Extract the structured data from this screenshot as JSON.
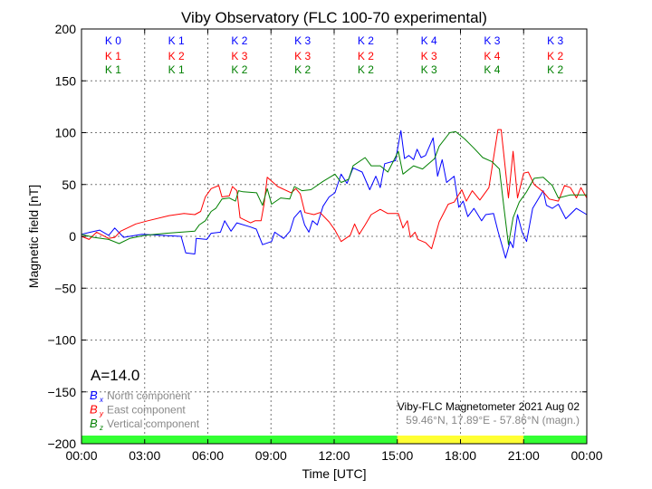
{
  "chart_data": {
    "type": "line",
    "title": "Viby Observatory (FLC 100-70 experimental)",
    "xlabel": "Time [UTC]",
    "ylabel": "Magnetic field [nT]",
    "xlim": [
      0,
      24
    ],
    "ylim": [
      -200,
      200
    ],
    "grid": true,
    "x_ticks": [
      0,
      3,
      6,
      9,
      12,
      15,
      18,
      21,
      24
    ],
    "x_tick_labels": [
      "00:00",
      "03:00",
      "06:00",
      "09:00",
      "12:00",
      "15:00",
      "18:00",
      "21:00",
      "00:00"
    ],
    "y_ticks": [
      200,
      150,
      100,
      50,
      0,
      -50,
      -100,
      -150,
      -200
    ],
    "y_tick_labels": [
      "200",
      "150",
      "100",
      "50",
      "0",
      "−50",
      "−100",
      "−150",
      "−200"
    ],
    "k_indices": {
      "Bx": [
        "K 0",
        "K 1",
        "K 2",
        "K 3",
        "K 2",
        "K 4",
        "K 3",
        "K 3"
      ],
      "By": [
        "K 1",
        "K 2",
        "K 3",
        "K 3",
        "K 2",
        "K 3",
        "K 4",
        "K 2"
      ],
      "Bz": [
        "K 1",
        "K 1",
        "K 2",
        "K 2",
        "K 2",
        "K 3",
        "K 4",
        "K 2"
      ]
    },
    "activity_bar": [
      {
        "from": 0,
        "to": 15,
        "color": "#33ff33"
      },
      {
        "from": 15,
        "to": 21,
        "color": "#ffff33"
      },
      {
        "from": 21,
        "to": 24,
        "color": "#33ff33"
      }
    ],
    "a_index": "A=14.0",
    "legend_placement": "bottom-left",
    "station_label": "Viby-FLC Magnetometer 2021 Aug 02",
    "coords_label": "59.46°N, 17.89°E - 57.86°N (magn.)",
    "series": [
      {
        "name": "Bx",
        "symbol": "B",
        "sub": "x",
        "label": "North component",
        "color": "#0000ff",
        "points": [
          [
            0,
            2
          ],
          [
            0.43,
            4
          ],
          [
            0.86,
            6
          ],
          [
            1.29,
            1
          ],
          [
            1.58,
            8
          ],
          [
            2.0,
            -1
          ],
          [
            2.87,
            2
          ],
          [
            4.73,
            0
          ],
          [
            4.95,
            -16
          ],
          [
            5.38,
            -17
          ],
          [
            5.45,
            -2
          ],
          [
            5.95,
            -3
          ],
          [
            6.16,
            3
          ],
          [
            6.6,
            4
          ],
          [
            6.8,
            15
          ],
          [
            7.1,
            5
          ],
          [
            7.38,
            13
          ],
          [
            8.03,
            9
          ],
          [
            8.3,
            7
          ],
          [
            8.6,
            -8
          ],
          [
            9.03,
            -5
          ],
          [
            9.18,
            4
          ],
          [
            9.6,
            -2
          ],
          [
            9.9,
            5
          ],
          [
            10.1,
            18
          ],
          [
            10.4,
            25
          ],
          [
            10.6,
            11
          ],
          [
            10.8,
            4
          ],
          [
            10.97,
            15
          ],
          [
            11.2,
            11
          ],
          [
            11.47,
            29
          ],
          [
            11.76,
            38
          ],
          [
            12.04,
            42
          ],
          [
            12.33,
            60
          ],
          [
            12.61,
            51
          ],
          [
            12.9,
            66
          ],
          [
            13.33,
            62
          ],
          [
            13.69,
            45
          ],
          [
            13.98,
            58
          ],
          [
            14.19,
            47
          ],
          [
            14.4,
            70
          ],
          [
            14.91,
            73
          ],
          [
            15.17,
            102
          ],
          [
            15.34,
            75
          ],
          [
            15.55,
            78
          ],
          [
            15.77,
            74
          ],
          [
            15.94,
            84
          ],
          [
            16.13,
            76
          ],
          [
            16.34,
            78
          ],
          [
            16.7,
            95
          ],
          [
            16.91,
            58
          ],
          [
            17.13,
            74
          ],
          [
            17.34,
            52
          ],
          [
            17.7,
            58
          ],
          [
            17.92,
            28
          ],
          [
            18.13,
            34
          ],
          [
            18.35,
            19
          ],
          [
            18.64,
            27
          ],
          [
            19.0,
            15
          ],
          [
            19.2,
            21
          ],
          [
            19.57,
            22
          ],
          [
            19.78,
            5
          ],
          [
            20.14,
            -21
          ],
          [
            20.36,
            -5
          ],
          [
            20.5,
            -11
          ],
          [
            20.71,
            21
          ],
          [
            20.93,
            4
          ],
          [
            21.14,
            -5
          ],
          [
            21.43,
            27
          ],
          [
            21.93,
            44
          ],
          [
            22.08,
            30
          ],
          [
            22.36,
            27
          ],
          [
            22.65,
            31
          ],
          [
            23.0,
            17
          ],
          [
            23.5,
            27
          ],
          [
            24,
            21
          ]
        ]
      },
      {
        "name": "By",
        "symbol": "B",
        "sub": "y",
        "label": "East component",
        "color": "#ff0000",
        "points": [
          [
            0,
            0
          ],
          [
            0.36,
            -3
          ],
          [
            0.72,
            4
          ],
          [
            1.29,
            -2
          ],
          [
            1.58,
            -1
          ],
          [
            1.86,
            5
          ],
          [
            2.58,
            12
          ],
          [
            3.15,
            15
          ],
          [
            4.16,
            20
          ],
          [
            4.87,
            22
          ],
          [
            5.38,
            21
          ],
          [
            5.66,
            24
          ],
          [
            5.88,
            38
          ],
          [
            6.16,
            46
          ],
          [
            6.52,
            49
          ],
          [
            6.67,
            38
          ],
          [
            7.02,
            39
          ],
          [
            7.17,
            48
          ],
          [
            7.38,
            44
          ],
          [
            7.53,
            18
          ],
          [
            8.03,
            13
          ],
          [
            8.24,
            15
          ],
          [
            8.53,
            15
          ],
          [
            8.67,
            31
          ],
          [
            8.82,
            57
          ],
          [
            9.32,
            48
          ],
          [
            9.96,
            42
          ],
          [
            10.18,
            46
          ],
          [
            10.39,
            41
          ],
          [
            10.61,
            23
          ],
          [
            11.04,
            21
          ],
          [
            11.33,
            23
          ],
          [
            11.76,
            14
          ],
          [
            12.04,
            6
          ],
          [
            12.33,
            -5
          ],
          [
            12.76,
            1
          ],
          [
            12.97,
            12
          ],
          [
            13.19,
            2
          ],
          [
            13.47,
            11
          ],
          [
            13.76,
            21
          ],
          [
            14.19,
            26
          ],
          [
            14.55,
            22
          ],
          [
            15.05,
            22
          ],
          [
            15.27,
            8
          ],
          [
            15.48,
            15
          ],
          [
            15.62,
            -1
          ],
          [
            15.84,
            4
          ],
          [
            15.98,
            -3
          ],
          [
            16.34,
            -6
          ],
          [
            16.63,
            -12
          ],
          [
            16.99,
            14
          ],
          [
            17.42,
            31
          ],
          [
            17.7,
            33
          ],
          [
            18.06,
            45
          ],
          [
            18.28,
            34
          ],
          [
            18.56,
            44
          ],
          [
            18.92,
            35
          ],
          [
            19.35,
            47
          ],
          [
            19.78,
            103
          ],
          [
            19.93,
            103
          ],
          [
            20.28,
            37
          ],
          [
            20.5,
            82
          ],
          [
            20.71,
            37
          ],
          [
            21.0,
            61
          ],
          [
            21.22,
            62
          ],
          [
            21.5,
            50
          ],
          [
            21.93,
            43
          ],
          [
            22.22,
            36
          ],
          [
            22.65,
            34
          ],
          [
            22.94,
            49
          ],
          [
            23.22,
            47
          ],
          [
            23.51,
            37
          ],
          [
            23.72,
            47
          ],
          [
            24,
            37
          ]
        ]
      },
      {
        "name": "Bz",
        "symbol": "B",
        "sub": "z",
        "label": "Vertical component",
        "color": "#008000",
        "points": [
          [
            0,
            2
          ],
          [
            0.57,
            -1
          ],
          [
            1.29,
            -3
          ],
          [
            1.79,
            -7
          ],
          [
            2.29,
            -2
          ],
          [
            3.01,
            1
          ],
          [
            4.01,
            3
          ],
          [
            5.38,
            5
          ],
          [
            5.59,
            11
          ],
          [
            5.88,
            15
          ],
          [
            6.16,
            24
          ],
          [
            6.38,
            27
          ],
          [
            6.67,
            36
          ],
          [
            7.02,
            37
          ],
          [
            7.31,
            34
          ],
          [
            7.46,
            44
          ],
          [
            7.67,
            43
          ],
          [
            8.32,
            42
          ],
          [
            8.6,
            30
          ],
          [
            8.82,
            46
          ],
          [
            9.03,
            31
          ],
          [
            9.46,
            37
          ],
          [
            9.89,
            36
          ],
          [
            10.11,
            48
          ],
          [
            10.47,
            44
          ],
          [
            10.9,
            45
          ],
          [
            11.47,
            53
          ],
          [
            12.04,
            60
          ],
          [
            12.33,
            52
          ],
          [
            12.69,
            55
          ],
          [
            12.9,
            68
          ],
          [
            13.47,
            76
          ],
          [
            13.76,
            68
          ],
          [
            14.19,
            68
          ],
          [
            14.55,
            62
          ],
          [
            15.05,
            82
          ],
          [
            15.27,
            60
          ],
          [
            15.77,
            68
          ],
          [
            16.2,
            65
          ],
          [
            16.77,
            75
          ],
          [
            16.99,
            87
          ],
          [
            17.49,
            100
          ],
          [
            17.77,
            101
          ],
          [
            18.2,
            94
          ],
          [
            18.64,
            85
          ],
          [
            19.06,
            76
          ],
          [
            19.5,
            72
          ],
          [
            19.85,
            65
          ],
          [
            20.07,
            27
          ],
          [
            20.28,
            -8
          ],
          [
            20.5,
            18
          ],
          [
            20.79,
            33
          ],
          [
            21.14,
            43
          ],
          [
            21.5,
            56
          ],
          [
            21.93,
            57
          ],
          [
            22.36,
            49
          ],
          [
            22.65,
            37
          ],
          [
            23.22,
            40
          ],
          [
            24,
            40
          ]
        ]
      }
    ]
  }
}
